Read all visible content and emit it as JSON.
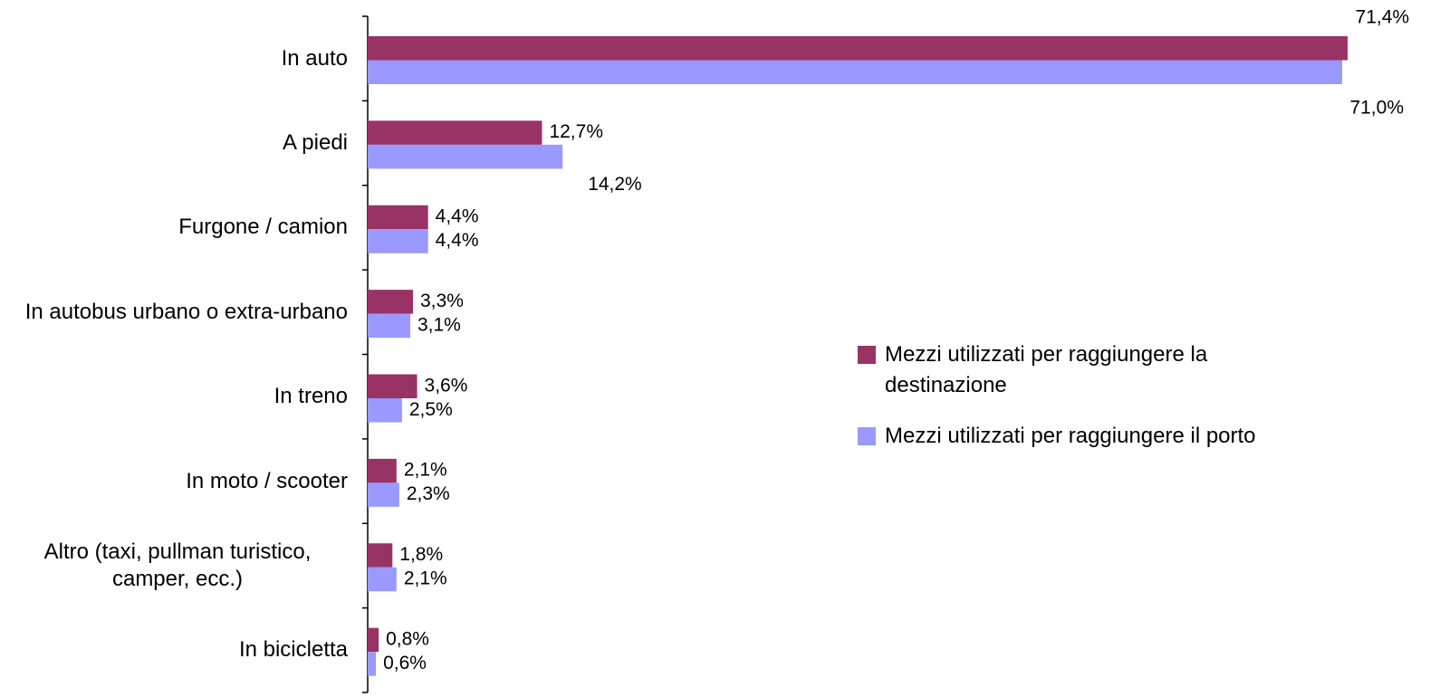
{
  "chart_data": {
    "type": "bar",
    "orientation": "horizontal",
    "categories": [
      "In auto",
      "A piedi",
      "Furgone / camion",
      "In autobus urbano o extra-urbano",
      "In treno",
      "In moto / scooter",
      "Altro (taxi, pullman turistico, camper, ecc.)",
      "In bicicletta"
    ],
    "series": [
      {
        "name": "Mezzi utilizzati per raggiungere la destinazione",
        "color": "#993366",
        "values": [
          71.4,
          12.7,
          4.4,
          3.3,
          3.6,
          2.1,
          1.8,
          0.8
        ],
        "value_labels": [
          "71,4%",
          "12,7%",
          "4,4%",
          "3,3%",
          "3,6%",
          "2,1%",
          "1,8%",
          "0,8%"
        ]
      },
      {
        "name": "Mezzi utilizzati per raggiungere il porto",
        "color": "#9999ff",
        "values": [
          71.0,
          14.2,
          4.4,
          3.1,
          2.5,
          2.3,
          2.1,
          0.6
        ],
        "value_labels": [
          "71,0%",
          "14,2%",
          "4,4%",
          "3,1%",
          "2,5%",
          "2,3%",
          "2,1%",
          "0,6%"
        ]
      }
    ],
    "legend": "right"
  }
}
